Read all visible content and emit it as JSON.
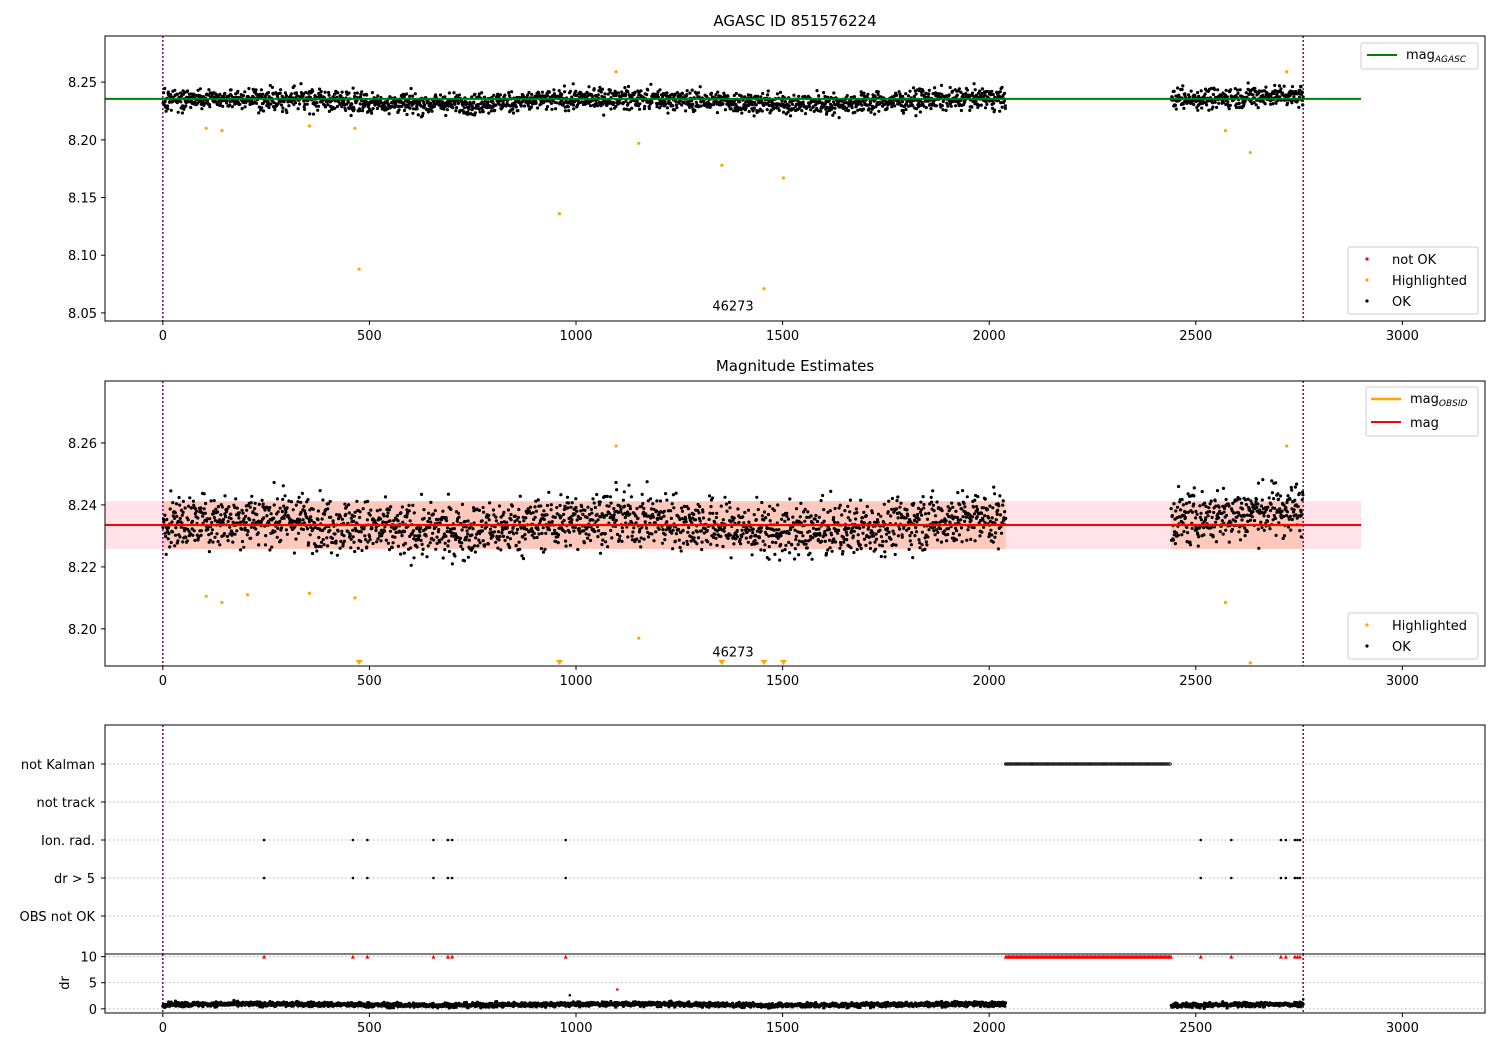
{
  "chart_data": [
    {
      "type": "scatter",
      "title": "AGASC ID 851576224",
      "xlim": [
        -140,
        3200
      ],
      "ylim": [
        8.043,
        8.29
      ],
      "xticks": [
        0,
        500,
        1000,
        1500,
        2000,
        2500,
        3000
      ],
      "yticks": [
        8.05,
        8.1,
        8.15,
        8.2,
        8.25
      ],
      "ytick_labels": [
        "8.05",
        "8.10",
        "8.15",
        "8.20",
        "8.25"
      ],
      "annotation": {
        "text": "46273",
        "x": 1380,
        "y": 8.052
      },
      "vlines": [
        0,
        2760
      ],
      "hline": {
        "name": "mag",
        "sub": "AGASC",
        "y": 8.2355,
        "x": [
          -140,
          2900
        ],
        "color": "#008000"
      },
      "ok_segments": [
        {
          "x": [
            0,
            2040
          ],
          "center": 8.2335,
          "spread": 0.009
        },
        {
          "x": [
            2440,
            2760
          ],
          "center": 8.2375,
          "spread": 0.009
        }
      ],
      "ok_color": "#000000",
      "highlighted_color": "#ffa500",
      "not_ok_color": "#ff0000",
      "highlighted": [
        {
          "x": 105,
          "y": 8.21
        },
        {
          "x": 143,
          "y": 8.208
        },
        {
          "x": 355,
          "y": 8.212
        },
        {
          "x": 465,
          "y": 8.21
        },
        {
          "x": 475,
          "y": 8.088
        },
        {
          "x": 960,
          "y": 8.136
        },
        {
          "x": 1097,
          "y": 8.259
        },
        {
          "x": 1152,
          "y": 8.197
        },
        {
          "x": 1353,
          "y": 8.178
        },
        {
          "x": 1455,
          "y": 8.071
        },
        {
          "x": 1502,
          "y": 8.167
        },
        {
          "x": 2572,
          "y": 8.208
        },
        {
          "x": 2632,
          "y": 8.189
        },
        {
          "x": 2720,
          "y": 8.259
        }
      ],
      "legend_top": [
        {
          "label": "mag",
          "sub": "AGASC",
          "color": "#008000"
        }
      ],
      "legend_bottom": [
        {
          "label": "not OK",
          "color": "#ff0000"
        },
        {
          "label": "Highlighted",
          "color": "#ffa500"
        },
        {
          "label": "OK",
          "color": "#000000"
        }
      ]
    },
    {
      "type": "scatter",
      "title": "Magnitude Estimates",
      "xlim": [
        -140,
        3200
      ],
      "ylim": [
        8.188,
        8.28
      ],
      "xticks": [
        0,
        500,
        1000,
        1500,
        2000,
        2500,
        3000
      ],
      "yticks": [
        8.2,
        8.22,
        8.24,
        8.26
      ],
      "ytick_labels": [
        "8.20",
        "8.22",
        "8.24",
        "8.26"
      ],
      "annotation": {
        "text": "46273",
        "x": 1380,
        "y": 8.191
      },
      "vlines": [
        0,
        2760
      ],
      "mag_line": {
        "name": "mag",
        "y": 8.2335,
        "x": [
          -140,
          2900
        ],
        "color": "#ff0000"
      },
      "mag_band": {
        "y": [
          8.2258,
          8.2412
        ],
        "x": [
          -140,
          2900
        ],
        "color": "#ffc0cb"
      },
      "obsid_line": {
        "name": "mag",
        "sub": "OBSID",
        "y": 8.2335,
        "segments": [
          [
            0,
            2040
          ],
          [
            2440,
            2760
          ]
        ],
        "color": "#ffa500"
      },
      "obsid_band": {
        "y": [
          8.2258,
          8.2412
        ],
        "color": "#ffa07a"
      },
      "ok_segments": [
        {
          "x": [
            0,
            2040
          ],
          "center": 8.2335,
          "spread": 0.0085
        },
        {
          "x": [
            2440,
            2760
          ],
          "center": 8.2375,
          "spread": 0.0085
        }
      ],
      "highlighted": [
        {
          "x": 105,
          "y": 8.2105
        },
        {
          "x": 143,
          "y": 8.2085
        },
        {
          "x": 205,
          "y": 8.211
        },
        {
          "x": 355,
          "y": 8.2115
        },
        {
          "x": 465,
          "y": 8.21
        },
        {
          "x": 1097,
          "y": 8.259
        },
        {
          "x": 1152,
          "y": 8.197
        },
        {
          "x": 2572,
          "y": 8.2085
        },
        {
          "x": 2632,
          "y": 8.189
        },
        {
          "x": 2720,
          "y": 8.259
        }
      ],
      "off_axis_markers": [
        475,
        960,
        1353,
        1455,
        1502
      ],
      "legend_top": [
        {
          "label": "mag",
          "sub": "OBSID",
          "color": "#ffa500"
        },
        {
          "label": "mag",
          "color": "#ff0000"
        }
      ],
      "legend_bottom": [
        {
          "label": "Highlighted",
          "color": "#ffa500"
        },
        {
          "label": "OK",
          "color": "#000000"
        }
      ]
    },
    {
      "type": "scatter",
      "xlim": [
        -140,
        3200
      ],
      "categories": [
        "not Kalman",
        "not track",
        "Ion. rad.",
        "dr > 5",
        "OBS not OK"
      ],
      "vlines": [
        0,
        2760
      ],
      "flags": {
        "not Kalman": [
          {
            "x": [
              2040,
              2440
            ]
          }
        ],
        "not track": [],
        "Ion. rad.": [
          245,
          460,
          495,
          655,
          690,
          700,
          975,
          2512,
          2586,
          2706,
          2718,
          2740,
          2746,
          2752
        ],
        "dr > 5": [
          245,
          460,
          495,
          655,
          690,
          700,
          975,
          2512,
          2586,
          2706,
          2718,
          2740,
          2746,
          2752
        ],
        "OBS not OK": []
      }
    },
    {
      "type": "scatter",
      "ylabel": "dr",
      "xlim": [
        -140,
        3200
      ],
      "ylim": [
        -0.8,
        10.5
      ],
      "xticks": [
        0,
        500,
        1000,
        1500,
        2000,
        2500,
        3000
      ],
      "yticks": [
        0,
        5,
        10
      ],
      "ytick_labels": [
        "0",
        "5",
        "10"
      ],
      "vlines": [
        0,
        2760
      ],
      "ok_segments": [
        {
          "x": [
            0,
            2040
          ],
          "center": 0.8,
          "spread": 0.45
        },
        {
          "x": [
            2440,
            2760
          ],
          "center": 0.8,
          "spread": 0.45
        }
      ],
      "capped_red": [
        245,
        460,
        495,
        655,
        690,
        700,
        975,
        2512,
        2586,
        2706,
        2718,
        2740,
        2746,
        2752
      ],
      "capped_red_range": [
        2040,
        2440
      ],
      "red_points": [
        {
          "x": 1100,
          "y": 3.7
        }
      ],
      "outliers": [
        {
          "x": 985,
          "y": 2.6
        },
        {
          "x": 2760,
          "y": 1.8
        }
      ],
      "cap_value": 10
    }
  ]
}
